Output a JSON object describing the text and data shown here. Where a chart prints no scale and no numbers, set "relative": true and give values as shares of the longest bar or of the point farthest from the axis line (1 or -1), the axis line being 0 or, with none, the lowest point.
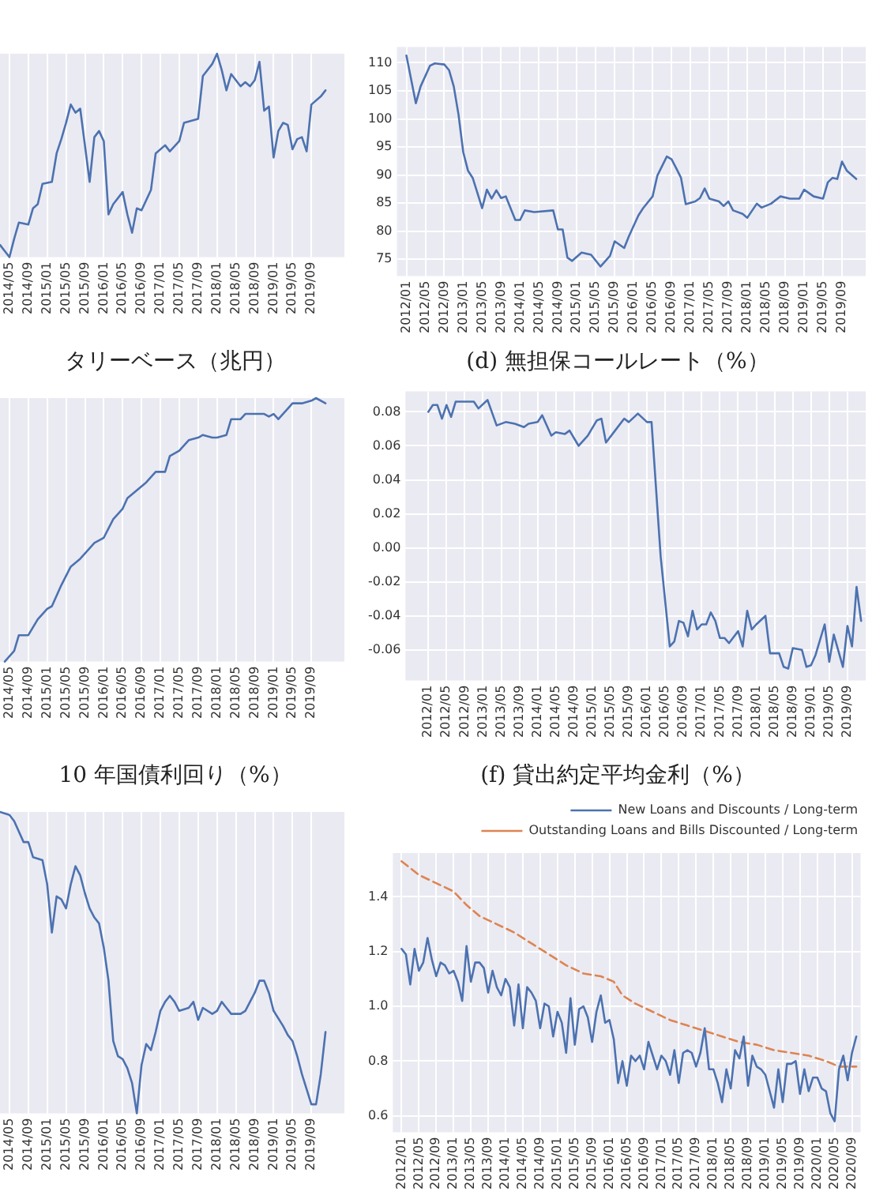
{
  "chart_data": [
    {
      "type": "line",
      "relative": true,
      "tick_labels": "x",
      "grid": "x",
      "marker": "none",
      "x": [
        "2014-03",
        "2014-05",
        "2014-06",
        "2014-07",
        "2014-09",
        "2014-10",
        "2014-11",
        "2014-12",
        "2015-02",
        "2015-03",
        "2015-04",
        "2015-05",
        "2015-06",
        "2015-07",
        "2015-08",
        "2015-09",
        "2015-10",
        "2015-11",
        "2015-12",
        "2016-01",
        "2016-02",
        "2016-03",
        "2016-05",
        "2016-06",
        "2016-07",
        "2016-08",
        "2016-09",
        "2016-11",
        "2016-12",
        "2017-02",
        "2017-03",
        "2017-05",
        "2017-06",
        "2017-09",
        "2017-10",
        "2017-12",
        "2018-01",
        "2018-02",
        "2018-03",
        "2018-04",
        "2018-06",
        "2018-07",
        "2018-08",
        "2018-09",
        "2018-10",
        "2018-11",
        "2018-12",
        "2019-01",
        "2019-02",
        "2019-03",
        "2019-04",
        "2019-05",
        "2019-06",
        "2019-07",
        "2019-08",
        "2019-09",
        "2019-11",
        "2019-12"
      ],
      "series": [
        {
          "color": "#4c72b0",
          "values": [
            0.06,
            0,
            0.09,
            0.17,
            0.16,
            0.24,
            0.26,
            0.36,
            0.37,
            0.51,
            0.58,
            0.66,
            0.75,
            0.71,
            0.73,
            0.55,
            0.37,
            0.59,
            0.62,
            0.57,
            0.21,
            0.26,
            0.32,
            0.21,
            0.12,
            0.24,
            0.23,
            0.33,
            0.51,
            0.55,
            0.52,
            0.57,
            0.66,
            0.68,
            0.89,
            0.95,
            1,
            0.92,
            0.82,
            0.9,
            0.84,
            0.86,
            0.84,
            0.87,
            0.96,
            0.72,
            0.74,
            0.49,
            0.62,
            0.66,
            0.65,
            0.53,
            0.58,
            0.59,
            0.52,
            0.75,
            0.79,
            0.82
          ]
        }
      ],
      "xlim": [
        "2014-03",
        "2020-04"
      ],
      "xticks": [
        {
          "value": "2014-05",
          "label": "2014/05"
        },
        {
          "value": "2014-09",
          "label": "2014/09"
        },
        {
          "value": "2015-01",
          "label": "2015/01"
        },
        {
          "value": "2015-05",
          "label": "2015/05"
        },
        {
          "value": "2015-09",
          "label": "2015/09"
        },
        {
          "value": "2016-01",
          "label": "2016/01"
        },
        {
          "value": "2016-05",
          "label": "2016/05"
        },
        {
          "value": "2016-09",
          "label": "2016/09"
        },
        {
          "value": "2017-01",
          "label": "2017/01"
        },
        {
          "value": "2017-05",
          "label": "2017/05"
        },
        {
          "value": "2017-09",
          "label": "2017/09"
        },
        {
          "value": "2018-01",
          "label": "2018/01"
        },
        {
          "value": "2018-05",
          "label": "2018/05"
        },
        {
          "value": "2018-09",
          "label": "2018/09"
        },
        {
          "value": "2019-01",
          "label": "2019/01"
        },
        {
          "value": "2019-05",
          "label": "2019/05"
        },
        {
          "value": "2019-09",
          "label": "2019/09"
        }
      ]
    },
    {
      "type": "line",
      "grid": true,
      "marker": "none",
      "x": [
        "2012-01",
        "2012-03",
        "2012-04",
        "2012-06",
        "2012-07",
        "2012-09",
        "2012-10",
        "2012-11",
        "2012-12",
        "2013-01",
        "2013-02",
        "2013-03",
        "2013-05",
        "2013-06",
        "2013-07",
        "2013-08",
        "2013-09",
        "2013-10",
        "2013-12",
        "2014-01",
        "2014-02",
        "2014-04",
        "2014-08",
        "2014-09",
        "2014-10",
        "2014-11",
        "2014-12",
        "2015-02",
        "2015-04",
        "2015-06",
        "2015-08",
        "2015-09",
        "2015-11",
        "2015-12",
        "2016-02",
        "2016-03",
        "2016-05",
        "2016-06",
        "2016-08",
        "2016-09",
        "2016-10",
        "2016-11",
        "2016-12",
        "2017-02",
        "2017-03",
        "2017-04",
        "2017-05",
        "2017-07",
        "2017-08",
        "2017-09",
        "2017-10",
        "2017-12",
        "2018-01",
        "2018-03",
        "2018-04",
        "2018-06",
        "2018-08",
        "2018-10",
        "2018-12",
        "2019-01",
        "2019-03",
        "2019-05",
        "2019-06",
        "2019-07",
        "2019-08",
        "2019-09",
        "2019-10",
        "2019-12"
      ],
      "series": [
        {
          "color": "#4c72b0",
          "values": [
            111.3,
            102.8,
            105.8,
            109.5,
            109.9,
            109.7,
            108.7,
            105.8,
            100.8,
            94.1,
            90.8,
            89.5,
            84.1,
            87.4,
            85.8,
            87.3,
            85.9,
            86.2,
            82,
            82,
            83.7,
            83.4,
            83.7,
            80.3,
            80.3,
            75.3,
            74.7,
            76.2,
            75.8,
            73.7,
            75.6,
            78.2,
            77,
            79.1,
            82.8,
            84.1,
            86.2,
            89.9,
            93.3,
            92.8,
            91.2,
            89.5,
            84.8,
            85.3,
            85.9,
            87.6,
            85.8,
            85.3,
            84.5,
            85.3,
            83.7,
            83.1,
            82.4,
            84.9,
            84.2,
            84.9,
            86.2,
            85.8,
            85.8,
            87.4,
            86.2,
            85.8,
            88.7,
            89.5,
            89.3,
            92.4,
            90.8,
            89.3
          ]
        }
      ],
      "xlim": [
        "2011-11",
        "2020-02"
      ],
      "ylim": [
        72,
        112.8
      ],
      "yticks": [
        75,
        80,
        85,
        90,
        95,
        100,
        105,
        110
      ],
      "xticks": [
        {
          "value": "2012-01",
          "label": "2012/01"
        },
        {
          "value": "2012-05",
          "label": "2012/05"
        },
        {
          "value": "2012-09",
          "label": "2012/09"
        },
        {
          "value": "2013-01",
          "label": "2013/01"
        },
        {
          "value": "2013-05",
          "label": "2013/05"
        },
        {
          "value": "2013-09",
          "label": "2013/09"
        },
        {
          "value": "2014-01",
          "label": "2014/01"
        },
        {
          "value": "2014-05",
          "label": "2014/05"
        },
        {
          "value": "2014-09",
          "label": "2014/09"
        },
        {
          "value": "2015-01",
          "label": "2015/01"
        },
        {
          "value": "2015-05",
          "label": "2015/05"
        },
        {
          "value": "2015-09",
          "label": "2015/09"
        },
        {
          "value": "2016-01",
          "label": "2016/01"
        },
        {
          "value": "2016-05",
          "label": "2016/05"
        },
        {
          "value": "2016-09",
          "label": "2016/09"
        },
        {
          "value": "2017-01",
          "label": "2017/01"
        },
        {
          "value": "2017-05",
          "label": "2017/05"
        },
        {
          "value": "2017-09",
          "label": "2017/09"
        },
        {
          "value": "2018-01",
          "label": "2018/01"
        },
        {
          "value": "2018-05",
          "label": "2018/05"
        },
        {
          "value": "2018-09",
          "label": "2018/09"
        },
        {
          "value": "2019-01",
          "label": "2019/01"
        },
        {
          "value": "2019-05",
          "label": "2019/05"
        },
        {
          "value": "2019-09",
          "label": "2019/09"
        }
      ]
    },
    {
      "type": "line",
      "title": "タリーベース（兆円）",
      "relative": true,
      "tick_labels": "x",
      "grid": "x",
      "marker": "none",
      "x": [
        "2014-04",
        "2014-06",
        "2014-07",
        "2014-09",
        "2014-11",
        "2015-01",
        "2015-02",
        "2015-04",
        "2015-06",
        "2015-08",
        "2015-10",
        "2015-11",
        "2016-01",
        "2016-03",
        "2016-05",
        "2016-06",
        "2016-08",
        "2016-10",
        "2016-12",
        "2017-02",
        "2017-03",
        "2017-05",
        "2017-07",
        "2017-09",
        "2017-10",
        "2017-12",
        "2018-01",
        "2018-03",
        "2018-04",
        "2018-06",
        "2018-07",
        "2018-09",
        "2018-11",
        "2018-12",
        "2019-01",
        "2019-02",
        "2019-04",
        "2019-05",
        "2019-07",
        "2019-09",
        "2019-10",
        "2019-12"
      ],
      "series": [
        {
          "color": "#4c72b0",
          "values": [
            0,
            0.04,
            0.1,
            0.1,
            0.16,
            0.2,
            0.21,
            0.29,
            0.36,
            0.39,
            0.43,
            0.45,
            0.47,
            0.54,
            0.58,
            0.62,
            0.65,
            0.68,
            0.72,
            0.72,
            0.78,
            0.8,
            0.84,
            0.85,
            0.86,
            0.85,
            0.85,
            0.86,
            0.92,
            0.92,
            0.94,
            0.94,
            0.94,
            0.93,
            0.94,
            0.92,
            0.96,
            0.98,
            0.98,
            0.99,
            1,
            0.98
          ]
        }
      ],
      "xlim": [
        "2014-03",
        "2020-04"
      ],
      "xticks": [
        {
          "value": "2014-05",
          "label": "2014/05"
        },
        {
          "value": "2014-09",
          "label": "2014/09"
        },
        {
          "value": "2015-01",
          "label": "2015/01"
        },
        {
          "value": "2015-05",
          "label": "2015/05"
        },
        {
          "value": "2015-09",
          "label": "2015/09"
        },
        {
          "value": "2016-01",
          "label": "2016/01"
        },
        {
          "value": "2016-05",
          "label": "2016/05"
        },
        {
          "value": "2016-09",
          "label": "2016/09"
        },
        {
          "value": "2017-01",
          "label": "2017/01"
        },
        {
          "value": "2017-05",
          "label": "2017/05"
        },
        {
          "value": "2017-09",
          "label": "2017/09"
        },
        {
          "value": "2018-01",
          "label": "2018/01"
        },
        {
          "value": "2018-05",
          "label": "2018/05"
        },
        {
          "value": "2018-09",
          "label": "2018/09"
        },
        {
          "value": "2019-01",
          "label": "2019/01"
        },
        {
          "value": "2019-05",
          "label": "2019/05"
        },
        {
          "value": "2019-09",
          "label": "2019/09"
        }
      ]
    },
    {
      "type": "line",
      "title": "(d) 無担保コールレート（%）",
      "grid": true,
      "marker": "none",
      "x": [
        "2012-01",
        "2012-02",
        "2012-03",
        "2012-04",
        "2012-05",
        "2012-06",
        "2012-07",
        "2012-09",
        "2012-11",
        "2012-12",
        "2013-02",
        "2013-04",
        "2013-06",
        "2013-08",
        "2013-10",
        "2013-11",
        "2014-01",
        "2014-02",
        "2014-04",
        "2014-05",
        "2014-07",
        "2014-08",
        "2014-10",
        "2014-12",
        "2015-02",
        "2015-03",
        "2015-04",
        "2015-06",
        "2015-08",
        "2015-09",
        "2015-11",
        "2016-01",
        "2016-02",
        "2016-04",
        "2016-06",
        "2016-07",
        "2016-08",
        "2016-09",
        "2016-10",
        "2016-11",
        "2016-12",
        "2017-01",
        "2017-02",
        "2017-03",
        "2017-04",
        "2017-05",
        "2017-06",
        "2017-07",
        "2017-09",
        "2017-10",
        "2017-11",
        "2017-12",
        "2018-01",
        "2018-03",
        "2018-04",
        "2018-06",
        "2018-07",
        "2018-08",
        "2018-09",
        "2018-11",
        "2018-12",
        "2019-01",
        "2019-02",
        "2019-04",
        "2019-05",
        "2019-06",
        "2019-08",
        "2019-09",
        "2019-10",
        "2019-11",
        "2019-12"
      ],
      "series": [
        {
          "color": "#4c72b0",
          "values": [
            0.08,
            0.084,
            0.084,
            0.076,
            0.084,
            0.077,
            0.086,
            0.086,
            0.086,
            0.082,
            0.087,
            0.072,
            0.074,
            0.073,
            0.071,
            0.073,
            0.074,
            0.078,
            0.066,
            0.068,
            0.067,
            0.069,
            0.06,
            0.066,
            0.075,
            0.076,
            0.062,
            0.069,
            0.076,
            0.074,
            0.079,
            0.074,
            0.074,
            -0.005,
            -0.058,
            -0.055,
            -0.043,
            -0.044,
            -0.052,
            -0.037,
            -0.048,
            -0.045,
            -0.045,
            -0.038,
            -0.043,
            -0.053,
            -0.053,
            -0.056,
            -0.049,
            -0.058,
            -0.037,
            -0.048,
            -0.045,
            -0.04,
            -0.062,
            -0.062,
            -0.07,
            -0.071,
            -0.059,
            -0.06,
            -0.07,
            -0.069,
            -0.063,
            -0.045,
            -0.067,
            -0.051,
            -0.07,
            -0.046,
            -0.058,
            -0.023,
            -0.043
          ]
        }
      ],
      "xlim": [
        "2011-08",
        "2020-01"
      ],
      "ylim": [
        -0.078,
        0.092
      ],
      "yticks": [
        -0.06,
        -0.04,
        -0.02,
        {
          "value": 0,
          "label": "0.00"
        },
        0.02,
        0.04,
        0.06,
        0.08
      ],
      "xticks": [
        {
          "value": "2012-01",
          "label": "2012/01"
        },
        {
          "value": "2012-05",
          "label": "2012/05"
        },
        {
          "value": "2012-09",
          "label": "2012/09"
        },
        {
          "value": "2013-01",
          "label": "2013/01"
        },
        {
          "value": "2013-05",
          "label": "2013/05"
        },
        {
          "value": "2013-09",
          "label": "2013/09"
        },
        {
          "value": "2014-01",
          "label": "2014/01"
        },
        {
          "value": "2014-05",
          "label": "2014/05"
        },
        {
          "value": "2014-09",
          "label": "2014/09"
        },
        {
          "value": "2015-01",
          "label": "2015/01"
        },
        {
          "value": "2015-05",
          "label": "2015/05"
        },
        {
          "value": "2015-09",
          "label": "2015/09"
        },
        {
          "value": "2016-01",
          "label": "2016/01"
        },
        {
          "value": "2016-05",
          "label": "2016/05"
        },
        {
          "value": "2016-09",
          "label": "2016/09"
        },
        {
          "value": "2017-01",
          "label": "2017/01"
        },
        {
          "value": "2017-05",
          "label": "2017/05"
        },
        {
          "value": "2017-09",
          "label": "2017/09"
        },
        {
          "value": "2018-01",
          "label": "2018/01"
        },
        {
          "value": "2018-05",
          "label": "2018/05"
        },
        {
          "value": "2018-09",
          "label": "2018/09"
        },
        {
          "value": "2019-01",
          "label": "2019/01"
        },
        {
          "value": "2019-05",
          "label": "2019/05"
        },
        {
          "value": "2019-09",
          "label": "2019/09"
        }
      ]
    },
    {
      "type": "line",
      "title": "10 年国債利回り（%）",
      "relative": true,
      "tick_labels": "x",
      "grid": "x",
      "marker": "none",
      "x": [
        "2014-03",
        "2014-05",
        "2014-06",
        "2014-08",
        "2014-09",
        "2014-10",
        "2014-12",
        "2015-01",
        "2015-02",
        "2015-03",
        "2015-04",
        "2015-05",
        "2015-06",
        "2015-07",
        "2015-08",
        "2015-09",
        "2015-10",
        "2015-11",
        "2015-12",
        "2016-01",
        "2016-02",
        "2016-03",
        "2016-04",
        "2016-05",
        "2016-06",
        "2016-07",
        "2016-08",
        "2016-09",
        "2016-10",
        "2016-11",
        "2016-12",
        "2017-01",
        "2017-02",
        "2017-03",
        "2017-04",
        "2017-05",
        "2017-07",
        "2017-08",
        "2017-09",
        "2017-10",
        "2017-12",
        "2018-01",
        "2018-02",
        "2018-03",
        "2018-04",
        "2018-06",
        "2018-07",
        "2018-09",
        "2018-10",
        "2018-11",
        "2018-12",
        "2019-01",
        "2019-03",
        "2019-04",
        "2019-05",
        "2019-06",
        "2019-07",
        "2019-09",
        "2019-10",
        "2019-11",
        "2019-12"
      ],
      "series": [
        {
          "color": "#4c72b0",
          "values": [
            1,
            0.99,
            0.97,
            0.9,
            0.9,
            0.85,
            0.84,
            0.76,
            0.6,
            0.72,
            0.71,
            0.68,
            0.76,
            0.82,
            0.79,
            0.73,
            0.68,
            0.65,
            0.63,
            0.55,
            0.44,
            0.24,
            0.19,
            0.18,
            0.15,
            0.1,
            0,
            0.16,
            0.23,
            0.21,
            0.27,
            0.34,
            0.37,
            0.39,
            0.37,
            0.34,
            0.35,
            0.37,
            0.31,
            0.35,
            0.33,
            0.34,
            0.37,
            0.35,
            0.33,
            0.33,
            0.34,
            0.4,
            0.44,
            0.44,
            0.4,
            0.34,
            0.29,
            0.26,
            0.24,
            0.19,
            0.13,
            0.03,
            0.03,
            0.13,
            0.27
          ]
        }
      ],
      "xlim": [
        "2014-03",
        "2020-04"
      ],
      "xticks": [
        {
          "value": "2014-05",
          "label": "2014/05"
        },
        {
          "value": "2014-09",
          "label": "2014/09"
        },
        {
          "value": "2015-01",
          "label": "2015/01"
        },
        {
          "value": "2015-05",
          "label": "2015/05"
        },
        {
          "value": "2015-09",
          "label": "2015/09"
        },
        {
          "value": "2016-01",
          "label": "2016/01"
        },
        {
          "value": "2016-05",
          "label": "2016/05"
        },
        {
          "value": "2016-09",
          "label": "2016/09"
        },
        {
          "value": "2017-01",
          "label": "2017/01"
        },
        {
          "value": "2017-05",
          "label": "2017/05"
        },
        {
          "value": "2017-09",
          "label": "2017/09"
        },
        {
          "value": "2018-01",
          "label": "2018/01"
        },
        {
          "value": "2018-05",
          "label": "2018/05"
        },
        {
          "value": "2018-09",
          "label": "2018/09"
        },
        {
          "value": "2019-01",
          "label": "2019/01"
        },
        {
          "value": "2019-05",
          "label": "2019/05"
        },
        {
          "value": "2019-09",
          "label": "2019/09"
        }
      ]
    },
    {
      "type": "line",
      "title": "(f) 貸出約定平均金利（%）",
      "grid": true,
      "marker": "none",
      "legend": "top right",
      "x": [
        "2012-01",
        "2012-02",
        "2012-03",
        "2012-04",
        "2012-05",
        "2012-06",
        "2012-07",
        "2012-08",
        "2012-09",
        "2012-10",
        "2012-11",
        "2012-12",
        "2013-01",
        "2013-02",
        "2013-03",
        "2013-04",
        "2013-05",
        "2013-06",
        "2013-07",
        "2013-08",
        "2013-09",
        "2013-10",
        "2013-11",
        "2013-12",
        "2014-01",
        "2014-02",
        "2014-03",
        "2014-04",
        "2014-05",
        "2014-06",
        "2014-07",
        "2014-08",
        "2014-09",
        "2014-10",
        "2014-11",
        "2014-12",
        "2015-01",
        "2015-02",
        "2015-03",
        "2015-04",
        "2015-05",
        "2015-06",
        "2015-07",
        "2015-08",
        "2015-09",
        "2015-10",
        "2015-11",
        "2015-12",
        "2016-01",
        "2016-02",
        "2016-03",
        "2016-04",
        "2016-05",
        "2016-06",
        "2016-07",
        "2016-08",
        "2016-09",
        "2016-10",
        "2016-11",
        "2016-12",
        "2017-01",
        "2017-02",
        "2017-03",
        "2017-04",
        "2017-05",
        "2017-06",
        "2017-07",
        "2017-08",
        "2017-09",
        "2017-10",
        "2017-11",
        "2017-12",
        "2018-01",
        "2018-02",
        "2018-03",
        "2018-04",
        "2018-05",
        "2018-06",
        "2018-07",
        "2018-08",
        "2018-09",
        "2018-10",
        "2018-11",
        "2018-12",
        "2019-01",
        "2019-02",
        "2019-03",
        "2019-04",
        "2019-05",
        "2019-06",
        "2019-07",
        "2019-08",
        "2019-09",
        "2019-10",
        "2019-11",
        "2019-12",
        "2020-01",
        "2020-02",
        "2020-03",
        "2020-04",
        "2020-05",
        "2020-06",
        "2020-07",
        "2020-08",
        "2020-09",
        "2020-10"
      ],
      "series": [
        {
          "name": "New Loans and Discounts / Long-term",
          "color": "#4c72b0",
          "values": [
            1.21,
            1.19,
            1.08,
            1.21,
            1.13,
            1.16,
            1.25,
            1.17,
            1.11,
            1.16,
            1.15,
            1.12,
            1.13,
            1.09,
            1.02,
            1.22,
            1.09,
            1.16,
            1.16,
            1.14,
            1.05,
            1.13,
            1.07,
            1.04,
            1.1,
            1.07,
            0.93,
            1.08,
            0.92,
            1.07,
            1.05,
            1.02,
            0.92,
            1.01,
            1.0,
            0.89,
            0.98,
            0.94,
            0.83,
            1.03,
            0.86,
            0.99,
            1.0,
            0.96,
            0.87,
            0.98,
            1.04,
            0.94,
            0.95,
            0.88,
            0.72,
            0.8,
            0.71,
            0.82,
            0.8,
            0.82,
            0.77,
            0.87,
            0.82,
            0.77,
            0.82,
            0.8,
            0.75,
            0.84,
            0.72,
            0.83,
            0.84,
            0.83,
            0.78,
            0.83,
            0.92,
            0.77,
            0.77,
            0.72,
            0.65,
            0.77,
            0.7,
            0.84,
            0.81,
            0.89,
            0.71,
            0.82,
            0.78,
            0.77,
            0.75,
            0.69,
            0.63,
            0.77,
            0.65,
            0.79,
            0.79,
            0.8,
            0.68,
            0.77,
            0.69,
            0.74,
            0.74,
            0.7,
            0.69,
            0.61,
            0.58,
            0.77,
            0.82,
            0.73,
            0.83,
            0.89
          ]
        },
        {
          "name": "Outstanding Loans and Bills Discounted / Long-term",
          "color": "#dd8452",
          "line_style": "dashed",
          "x": [
            "2012-01",
            "2012-05",
            "2012-09",
            "2013-01",
            "2013-04",
            "2013-07",
            "2013-11",
            "2014-03",
            "2014-07",
            "2014-11",
            "2015-03",
            "2015-07",
            "2015-11",
            "2016-02",
            "2016-04",
            "2016-07",
            "2016-11",
            "2017-03",
            "2017-07",
            "2017-11",
            "2018-03",
            "2018-07",
            "2018-11",
            "2019-03",
            "2019-07",
            "2019-11",
            "2020-03",
            "2020-06",
            "2020-10"
          ],
          "values": [
            1.53,
            1.48,
            1.45,
            1.42,
            1.37,
            1.33,
            1.3,
            1.27,
            1.23,
            1.19,
            1.15,
            1.12,
            1.11,
            1.09,
            1.04,
            1.01,
            0.98,
            0.95,
            0.93,
            0.91,
            0.89,
            0.87,
            0.86,
            0.84,
            0.83,
            0.82,
            0.8,
            0.78,
            0.78
          ]
        }
      ],
      "xlim": [
        "2011-11",
        "2020-11"
      ],
      "ylim": [
        0.54,
        1.56
      ],
      "yticks": [
        0.6,
        0.8,
        {
          "value": 1,
          "label": "1.0"
        },
        1.2,
        1.4
      ],
      "xticks": [
        {
          "value": "2012-01",
          "label": "2012/01"
        },
        {
          "value": "2012-05",
          "label": "2012/05"
        },
        {
          "value": "2012-09",
          "label": "2012/09"
        },
        {
          "value": "2013-01",
          "label": "2013/01"
        },
        {
          "value": "2013-05",
          "label": "2013/05"
        },
        {
          "value": "2013-09",
          "label": "2013/09"
        },
        {
          "value": "2014-01",
          "label": "2014/01"
        },
        {
          "value": "2014-05",
          "label": "2014/05"
        },
        {
          "value": "2014-09",
          "label": "2014/09"
        },
        {
          "value": "2015-01",
          "label": "2015/01"
        },
        {
          "value": "2015-05",
          "label": "2015/05"
        },
        {
          "value": "2015-09",
          "label": "2015/09"
        },
        {
          "value": "2016-01",
          "label": "2016/01"
        },
        {
          "value": "2016-05",
          "label": "2016/05"
        },
        {
          "value": "2016-09",
          "label": "2016/09"
        },
        {
          "value": "2017-01",
          "label": "2017/01"
        },
        {
          "value": "2017-05",
          "label": "2017/05"
        },
        {
          "value": "2017-09",
          "label": "2017/09"
        },
        {
          "value": "2018-01",
          "label": "2018/01"
        },
        {
          "value": "2018-05",
          "label": "2018/05"
        },
        {
          "value": "2018-09",
          "label": "2018/09"
        },
        {
          "value": "2019-01",
          "label": "2019/01"
        },
        {
          "value": "2019-05",
          "label": "2019/05"
        },
        {
          "value": "2019-09",
          "label": "2019/09"
        },
        {
          "value": "2020-01",
          "label": "2020/01"
        },
        {
          "value": "2020-05",
          "label": "2020/05"
        },
        {
          "value": "2020-09",
          "label": "2020/09"
        }
      ]
    }
  ]
}
